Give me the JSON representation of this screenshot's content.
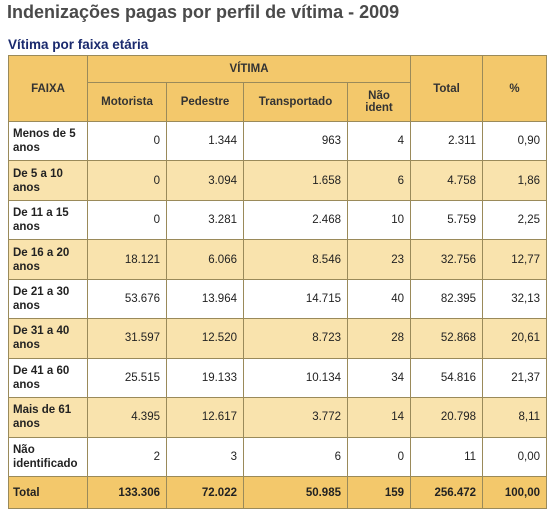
{
  "title": "Indenizações pagas por perfil de vítima - 2009",
  "subtitle": "Vítima por faixa etária",
  "table": {
    "col_faixa": "FAIXA",
    "group_vitima": "VÍTIMA",
    "col_motorista": "Motorista",
    "col_pedestre": "Pedestre",
    "col_transportado": "Transportado",
    "col_nao_ident": "Não ident",
    "col_total": "Total",
    "col_pct": "%",
    "rows": [
      {
        "faixa": "Menos de 5 anos",
        "motorista": "0",
        "pedestre": "1.344",
        "transportado": "963",
        "nao_ident": "4",
        "total": "2.311",
        "pct": "0,90"
      },
      {
        "faixa": "De 5 a 10 anos",
        "motorista": "0",
        "pedestre": "3.094",
        "transportado": "1.658",
        "nao_ident": "6",
        "total": "4.758",
        "pct": "1,86"
      },
      {
        "faixa": "De 11 a 15 anos",
        "motorista": "0",
        "pedestre": "3.281",
        "transportado": "2.468",
        "nao_ident": "10",
        "total": "5.759",
        "pct": "2,25"
      },
      {
        "faixa": "De 16 a 20 anos",
        "motorista": "18.121",
        "pedestre": "6.066",
        "transportado": "8.546",
        "nao_ident": "23",
        "total": "32.756",
        "pct": "12,77"
      },
      {
        "faixa": "De 21 a 30 anos",
        "motorista": "53.676",
        "pedestre": "13.964",
        "transportado": "14.715",
        "nao_ident": "40",
        "total": "82.395",
        "pct": "32,13"
      },
      {
        "faixa": "De 31 a 40 anos",
        "motorista": "31.597",
        "pedestre": "12.520",
        "transportado": "8.723",
        "nao_ident": "28",
        "total": "52.868",
        "pct": "20,61"
      },
      {
        "faixa": "De 41 a 60 anos",
        "motorista": "25.515",
        "pedestre": "19.133",
        "transportado": "10.134",
        "nao_ident": "34",
        "total": "54.816",
        "pct": "21,37"
      },
      {
        "faixa": "Mais de 61 anos",
        "motorista": "4.395",
        "pedestre": "12.617",
        "transportado": "3.772",
        "nao_ident": "14",
        "total": "20.798",
        "pct": "8,11"
      },
      {
        "faixa": "Não identificado",
        "motorista": "2",
        "pedestre": "3",
        "transportado": "6",
        "nao_ident": "0",
        "total": "11",
        "pct": "0,00"
      }
    ],
    "total_row": {
      "faixa": "Total",
      "motorista": "133.306",
      "pedestre": "72.022",
      "transportado": "50.985",
      "nao_ident": "159",
      "total": "256.472",
      "pct": "100,00"
    }
  },
  "colors": {
    "header_bg": "#f3c86b",
    "even_row_bg": "#f9e3ad",
    "odd_row_bg": "#ffffff",
    "title_color": "#4a4a4a",
    "subtitle_color": "#1a2a6e"
  }
}
